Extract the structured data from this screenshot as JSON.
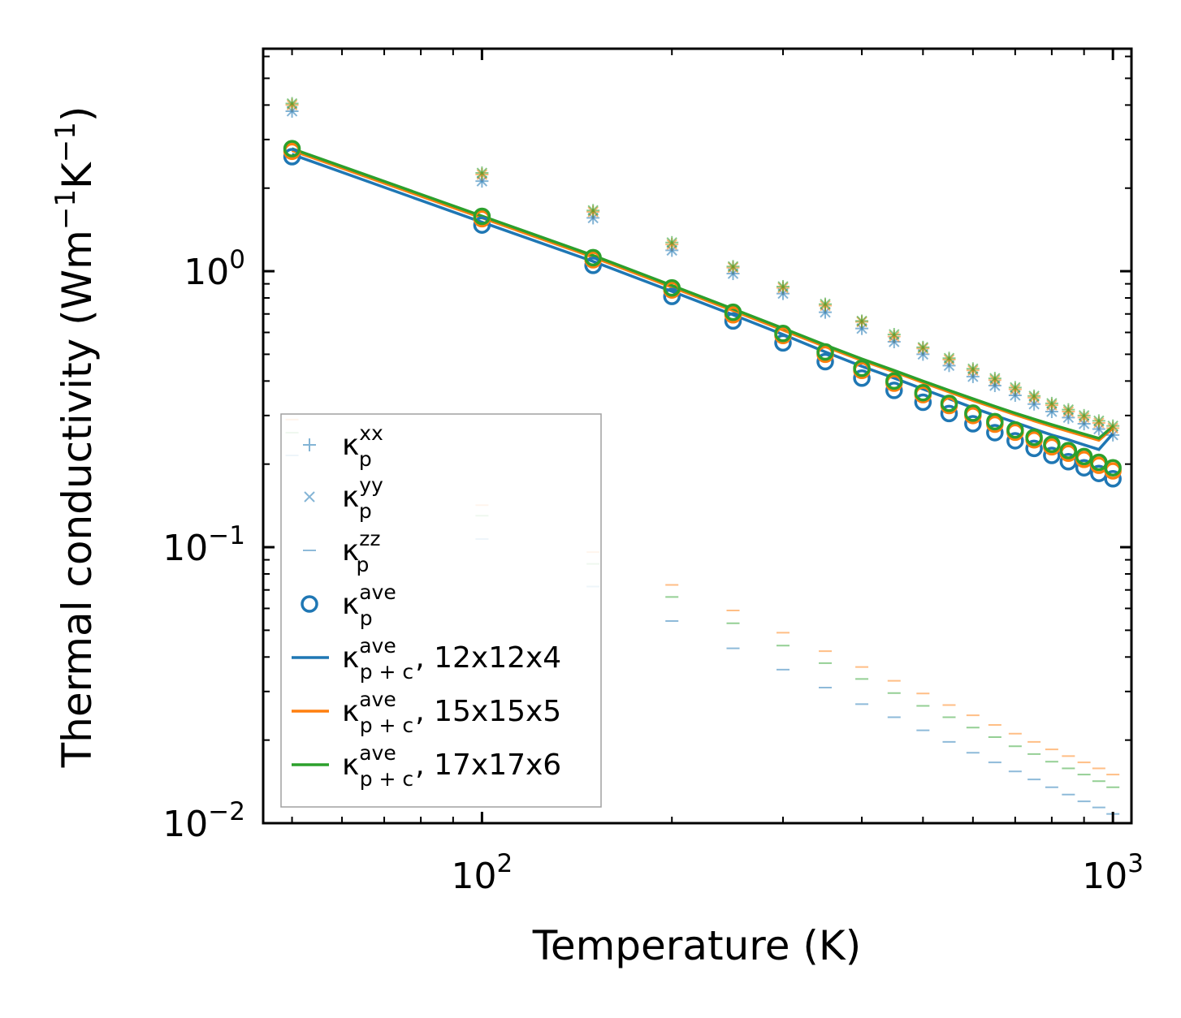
{
  "chart_data": {
    "type": "scatter",
    "xlabel": "Temperature (K)",
    "ylabel": {
      "main": "Thermal conductivity (Wm",
      "sup1": "−1",
      "mid": "K",
      "sup2": "−1",
      "end": ")"
    },
    "x_scale": "log",
    "y_scale": "log",
    "xlim": [
      45,
      1070
    ],
    "ylim": [
      0.01,
      6.4
    ],
    "x_ticks": [
      {
        "mantissa": "10",
        "exp": "2",
        "value": 100
      },
      {
        "mantissa": "10",
        "exp": "3",
        "value": 1000
      }
    ],
    "y_ticks": [
      {
        "mantissa": "10",
        "exp": "−2",
        "value": 0.01
      },
      {
        "mantissa": "10",
        "exp": "−1",
        "value": 0.1
      },
      {
        "mantissa": "10",
        "exp": "0",
        "value": 1
      }
    ],
    "legend_position": "lower-left",
    "x": [
      50,
      100,
      150,
      200,
      250,
      300,
      350,
      400,
      450,
      500,
      550,
      600,
      650,
      700,
      750,
      800,
      850,
      900,
      950,
      1000
    ],
    "series": [
      {
        "name": "κ_p^xx, 12x12x4",
        "group": "xx",
        "mesh": "12x12x4",
        "marker": "plus",
        "color": "#1f77b4",
        "values": [
          3.8,
          2.12,
          1.56,
          1.19,
          0.98,
          0.83,
          0.71,
          0.62,
          0.555,
          0.5,
          0.455,
          0.415,
          0.385,
          0.355,
          0.33,
          0.31,
          0.295,
          0.28,
          0.268,
          0.255
        ]
      },
      {
        "name": "κ_p^xx, 15x15x5",
        "group": "xx",
        "mesh": "15x15x5",
        "marker": "plus",
        "color": "#ff7f0e",
        "values": [
          4.0,
          2.24,
          1.64,
          1.25,
          1.03,
          0.87,
          0.75,
          0.655,
          0.58,
          0.525,
          0.478,
          0.437,
          0.403,
          0.373,
          0.348,
          0.327,
          0.31,
          0.295,
          0.282,
          0.27
        ]
      },
      {
        "name": "κ_p^xx, 17x17x6",
        "group": "xx",
        "mesh": "17x17x6",
        "marker": "plus",
        "color": "#2ca02c",
        "values": [
          4.05,
          2.27,
          1.66,
          1.27,
          1.04,
          0.88,
          0.76,
          0.66,
          0.59,
          0.53,
          0.484,
          0.443,
          0.409,
          0.379,
          0.353,
          0.332,
          0.315,
          0.3,
          0.287,
          0.275
        ]
      },
      {
        "name": "κ_p^yy, 12x12x4",
        "group": "yy",
        "mesh": "12x12x4",
        "marker": "x",
        "color": "#1f77b4",
        "values": [
          3.8,
          2.12,
          1.56,
          1.19,
          0.98,
          0.83,
          0.71,
          0.62,
          0.555,
          0.5,
          0.455,
          0.415,
          0.385,
          0.355,
          0.33,
          0.31,
          0.295,
          0.28,
          0.268,
          0.255
        ]
      },
      {
        "name": "κ_p^yy, 15x15x5",
        "group": "yy",
        "mesh": "15x15x5",
        "marker": "x",
        "color": "#ff7f0e",
        "values": [
          4.0,
          2.24,
          1.64,
          1.25,
          1.03,
          0.87,
          0.75,
          0.655,
          0.58,
          0.525,
          0.478,
          0.437,
          0.403,
          0.373,
          0.348,
          0.327,
          0.31,
          0.295,
          0.282,
          0.27
        ]
      },
      {
        "name": "κ_p^yy, 17x17x6",
        "group": "yy",
        "mesh": "17x17x6",
        "marker": "x",
        "color": "#2ca02c",
        "values": [
          4.05,
          2.27,
          1.66,
          1.27,
          1.04,
          0.88,
          0.76,
          0.66,
          0.59,
          0.53,
          0.484,
          0.443,
          0.409,
          0.379,
          0.353,
          0.332,
          0.315,
          0.3,
          0.287,
          0.275
        ]
      },
      {
        "name": "κ_p^zz, 12x12x4",
        "group": "zz",
        "mesh": "12x12x4",
        "marker": "hline",
        "color": "#1f77b4",
        "values": [
          0.215,
          0.107,
          0.072,
          0.054,
          0.043,
          0.036,
          0.031,
          0.027,
          0.0242,
          0.0217,
          0.0197,
          0.018,
          0.0166,
          0.0154,
          0.0144,
          0.0135,
          0.0127,
          0.012,
          0.0114,
          0.0108
        ]
      },
      {
        "name": "κ_p^zz, 15x15x5",
        "group": "zz",
        "mesh": "15x15x5",
        "marker": "hline",
        "color": "#ff7f0e",
        "values": [
          0.29,
          0.142,
          0.096,
          0.073,
          0.059,
          0.049,
          0.042,
          0.0368,
          0.0328,
          0.0295,
          0.0268,
          0.0246,
          0.0227,
          0.0211,
          0.0197,
          0.0185,
          0.0175,
          0.0166,
          0.0158,
          0.015
        ]
      },
      {
        "name": "κ_p^zz, 17x17x6",
        "group": "zz",
        "mesh": "17x17x6",
        "marker": "hline",
        "color": "#2ca02c",
        "values": [
          0.26,
          0.13,
          0.087,
          0.066,
          0.053,
          0.044,
          0.038,
          0.0333,
          0.0296,
          0.0266,
          0.0242,
          0.0222,
          0.0205,
          0.019,
          0.0178,
          0.0167,
          0.0158,
          0.015,
          0.0142,
          0.0135
        ]
      },
      {
        "name": "κ_p^ave, 12x12x4",
        "group": "ave",
        "mesh": "12x12x4",
        "marker": "circle",
        "color": "#1f77b4",
        "values": [
          2.6,
          1.47,
          1.05,
          0.81,
          0.66,
          0.55,
          0.47,
          0.41,
          0.37,
          0.335,
          0.305,
          0.28,
          0.26,
          0.243,
          0.228,
          0.215,
          0.204,
          0.194,
          0.185,
          0.177
        ]
      },
      {
        "name": "κ_p^ave, 15x15x5",
        "group": "ave",
        "mesh": "15x15x5",
        "marker": "circle",
        "color": "#ff7f0e",
        "values": [
          2.72,
          1.55,
          1.1,
          0.855,
          0.695,
          0.585,
          0.5,
          0.437,
          0.393,
          0.357,
          0.326,
          0.3,
          0.279,
          0.261,
          0.245,
          0.231,
          0.219,
          0.208,
          0.198,
          0.189
        ]
      },
      {
        "name": "κ_p^ave, 17x17x6",
        "group": "ave",
        "mesh": "17x17x6",
        "marker": "circle",
        "color": "#2ca02c",
        "values": [
          2.78,
          1.58,
          1.12,
          0.87,
          0.71,
          0.595,
          0.51,
          0.445,
          0.4,
          0.363,
          0.332,
          0.306,
          0.285,
          0.266,
          0.25,
          0.236,
          0.224,
          0.213,
          0.203,
          0.194
        ]
      },
      {
        "name": "κ_{p+c}^ave, 12x12x4",
        "group": "pc",
        "mesh": "12x12x4",
        "marker": "line",
        "color": "#1f77b4",
        "values": [
          2.65,
          1.505,
          1.085,
          0.845,
          0.695,
          0.59,
          0.51,
          0.452,
          0.41,
          0.374,
          0.345,
          0.32,
          0.3,
          0.283,
          0.268,
          0.255,
          0.245,
          0.235,
          0.226,
          0.258
        ]
      },
      {
        "name": "κ_{p+c}^ave, 15x15x5",
        "group": "pc",
        "mesh": "15x15x5",
        "marker": "line",
        "color": "#ff7f0e",
        "values": [
          2.74,
          1.56,
          1.125,
          0.875,
          0.72,
          0.612,
          0.533,
          0.475,
          0.432,
          0.395,
          0.365,
          0.34,
          0.32,
          0.302,
          0.287,
          0.274,
          0.263,
          0.253,
          0.244,
          0.27
        ]
      },
      {
        "name": "κ_{p+c}^ave, 17x17x6",
        "group": "pc",
        "mesh": "17x17x6",
        "marker": "line",
        "color": "#2ca02c",
        "values": [
          2.78,
          1.585,
          1.14,
          0.888,
          0.73,
          0.621,
          0.54,
          0.481,
          0.437,
          0.4,
          0.37,
          0.345,
          0.324,
          0.306,
          0.291,
          0.278,
          0.267,
          0.257,
          0.248,
          0.274
        ]
      }
    ],
    "legend": [
      {
        "kind": "plus",
        "color": "#1f77b4",
        "base": "κ",
        "sup": "xx",
        "sub": "p",
        "suffix": ""
      },
      {
        "kind": "x",
        "color": "#1f77b4",
        "base": "κ",
        "sup": "yy",
        "sub": "p",
        "suffix": ""
      },
      {
        "kind": "hline",
        "color": "#1f77b4",
        "base": "κ",
        "sup": "zz",
        "sub": "p",
        "suffix": ""
      },
      {
        "kind": "circle",
        "color": "#1f77b4",
        "base": "κ",
        "sup": "ave",
        "sub": "p",
        "suffix": ""
      },
      {
        "kind": "line",
        "color": "#1f77b4",
        "base": "κ",
        "sup": "ave",
        "sub": "p + c",
        "suffix": ", 12x12x4"
      },
      {
        "kind": "line",
        "color": "#ff7f0e",
        "base": "κ",
        "sup": "ave",
        "sub": "p + c",
        "suffix": ", 15x15x5"
      },
      {
        "kind": "line",
        "color": "#2ca02c",
        "base": "κ",
        "sup": "ave",
        "sub": "p + c",
        "suffix": ", 17x17x6"
      }
    ]
  }
}
